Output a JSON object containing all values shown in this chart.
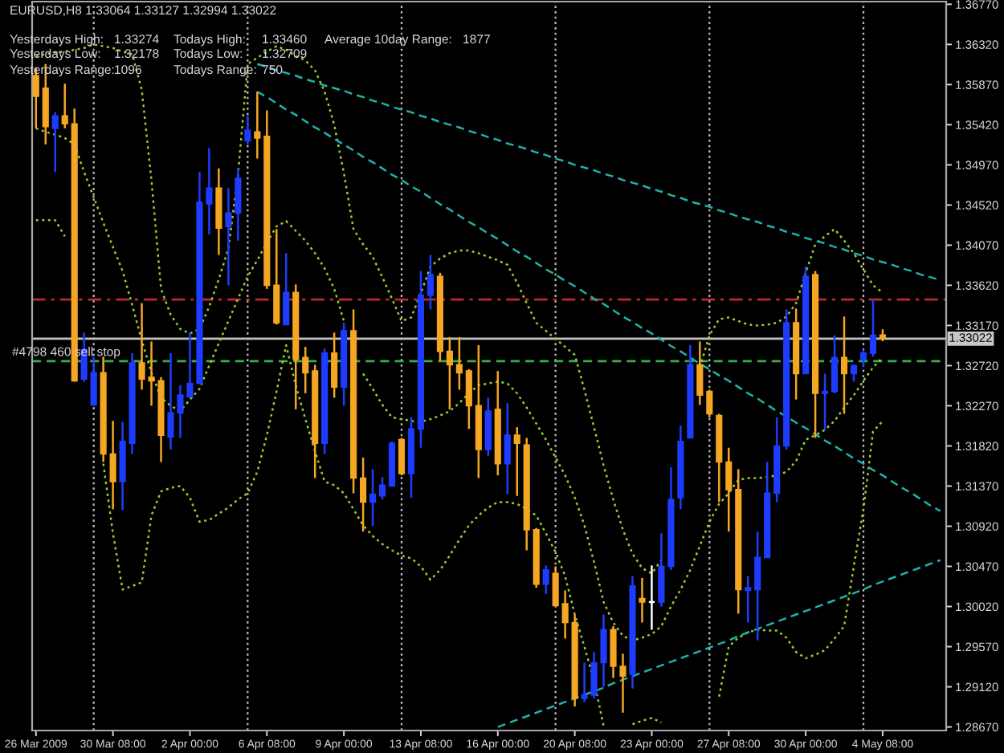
{
  "chart_data": {
    "type": "candlestick",
    "title": "EURUSD,H8 1.33064 1.33127 1.32994 1.33022",
    "annotations": [
      "Yesterdays High:",
      "1.33274",
      "Todays High:",
      "1.33460",
      "Average 10day Range:",
      "1877",
      "Yesterdays Low:",
      "1.32178",
      "Todays Low:",
      "1.32709",
      "Yesterdays Range:",
      "1096",
      "Todays Range:",
      "750"
    ],
    "categories": [
      "26 Mar 2009",
      null,
      null,
      null,
      null,
      null,
      null,
      null,
      "30 Mar 08:00",
      null,
      null,
      null,
      null,
      null,
      null,
      null,
      "2 Apr 00:00",
      null,
      null,
      null,
      null,
      null,
      null,
      null,
      "6 Apr 08:00",
      null,
      null,
      null,
      null,
      null,
      null,
      null,
      "9 Apr 00:00",
      null,
      null,
      null,
      null,
      null,
      null,
      null,
      "13 Apr 08:00",
      null,
      null,
      null,
      null,
      null,
      null,
      null,
      "16 Apr 00:00",
      null,
      null,
      null,
      null,
      null,
      null,
      null,
      "20 Apr 08:00",
      null,
      null,
      null,
      null,
      null,
      null,
      null,
      "23 Apr 00:00",
      null,
      null,
      null,
      null,
      null,
      null,
      null,
      "27 Apr 08:00",
      null,
      null,
      null,
      null,
      null,
      null,
      null,
      "30 Apr 00:00",
      null,
      null,
      null,
      null,
      null,
      null,
      null,
      "4 May 08:00",
      null,
      null,
      null,
      null,
      null,
      null
    ],
    "ohlc": [
      [
        1.3597,
        1.3606,
        1.3538,
        1.3574
      ],
      [
        1.3583,
        1.361,
        1.352,
        1.354
      ],
      [
        1.3538,
        1.3556,
        1.3489,
        1.3552
      ],
      [
        1.3552,
        1.3588,
        1.3538,
        1.3543
      ],
      [
        1.3543,
        1.356,
        1.3254,
        1.3255
      ],
      [
        1.3257,
        1.3309,
        1.3254,
        1.329
      ],
      [
        1.3228,
        1.3282,
        1.3227,
        1.3264
      ],
      [
        1.3264,
        1.3282,
        1.3164,
        1.3173
      ],
      [
        1.3173,
        1.321,
        1.3111,
        1.3142
      ],
      [
        1.3142,
        1.3209,
        1.311,
        1.3187
      ],
      [
        1.3185,
        1.3286,
        1.3173,
        1.3275
      ],
      [
        1.3275,
        1.3342,
        1.3245,
        1.3257
      ],
      [
        1.3259,
        1.3299,
        1.3227,
        1.3255
      ],
      [
        1.3255,
        1.3259,
        1.3164,
        1.3194
      ],
      [
        1.3192,
        1.3286,
        1.3178,
        1.3219
      ],
      [
        1.3219,
        1.325,
        1.3191,
        1.3239
      ],
      [
        1.3237,
        1.3309,
        1.3237,
        1.3252
      ],
      [
        1.3252,
        1.3489,
        1.3252,
        1.3455
      ],
      [
        1.3453,
        1.3516,
        1.3419,
        1.3471
      ],
      [
        1.3471,
        1.3493,
        1.3396,
        1.3426
      ],
      [
        1.3428,
        1.3471,
        1.3362,
        1.3443
      ],
      [
        1.3443,
        1.3493,
        1.3412,
        1.3482
      ],
      [
        1.3524,
        1.3552,
        1.352,
        1.3536
      ],
      [
        1.3534,
        1.3579,
        1.3504,
        1.3527
      ],
      [
        1.3529,
        1.3558,
        1.3358,
        1.3362
      ],
      [
        1.3362,
        1.3425,
        1.3318,
        1.332
      ],
      [
        1.3318,
        1.3398,
        1.3318,
        1.3354
      ],
      [
        1.3354,
        1.3363,
        1.3223,
        1.3279
      ],
      [
        1.3281,
        1.3293,
        1.3241,
        1.3264
      ],
      [
        1.3266,
        1.3273,
        1.3146,
        1.3185
      ],
      [
        1.3185,
        1.3291,
        1.3173,
        1.3286
      ],
      [
        1.3286,
        1.3309,
        1.3236,
        1.3248
      ],
      [
        1.3248,
        1.332,
        1.3227,
        1.3311
      ],
      [
        1.3311,
        1.3335,
        1.3129,
        1.3146
      ],
      [
        1.3146,
        1.3169,
        1.3086,
        1.3119
      ],
      [
        1.3119,
        1.3156,
        1.3092,
        1.3128
      ],
      [
        1.3126,
        1.3147,
        1.3122,
        1.3138
      ],
      [
        1.3137,
        1.3187,
        1.3137,
        1.3185
      ],
      [
        1.3189,
        1.3191,
        1.3149,
        1.3151
      ],
      [
        1.3151,
        1.3214,
        1.3124,
        1.3201
      ],
      [
        1.3201,
        1.3378,
        1.318,
        1.3351
      ],
      [
        1.3351,
        1.3396,
        1.3335,
        1.3374
      ],
      [
        1.3372,
        1.3376,
        1.3277,
        1.3288
      ],
      [
        1.3288,
        1.3304,
        1.3223,
        1.3273
      ],
      [
        1.3273,
        1.3304,
        1.3245,
        1.3264
      ],
      [
        1.3266,
        1.3268,
        1.3201,
        1.3227
      ],
      [
        1.3227,
        1.3295,
        1.3146,
        1.3178
      ],
      [
        1.3178,
        1.3236,
        1.3171,
        1.3221
      ],
      [
        1.3223,
        1.3266,
        1.3149,
        1.3162
      ],
      [
        1.3162,
        1.323,
        1.3128,
        1.3194
      ],
      [
        1.3194,
        1.3203,
        1.3126,
        1.3185
      ],
      [
        1.3183,
        1.3191,
        1.3065,
        1.3088
      ],
      [
        1.3088,
        1.309,
        1.3023,
        1.3027
      ],
      [
        1.3027,
        1.3048,
        1.3016,
        1.3043
      ],
      [
        1.3039,
        1.3047,
        1.3003,
        1.3003
      ],
      [
        1.3005,
        1.302,
        1.2966,
        1.2984
      ],
      [
        1.2984,
        1.2993,
        1.289,
        1.2899
      ],
      [
        1.2899,
        1.2939,
        1.2895,
        1.2903
      ],
      [
        1.2903,
        1.2951,
        1.2899,
        1.2939
      ],
      [
        1.2939,
        1.2993,
        1.2912,
        1.2976
      ],
      [
        1.2976,
        1.298,
        1.2922,
        1.2935
      ],
      [
        1.2935,
        1.2949,
        1.2883,
        1.2924
      ],
      [
        1.2926,
        1.3036,
        1.291,
        1.3025
      ],
      [
        1.3011,
        1.3034,
        1.2984,
        1.3007
      ],
      [
        1.3007,
        1.3048,
        1.2976,
        1.3007
      ],
      [
        1.3007,
        1.3084,
        1.3002,
        1.3047
      ],
      [
        1.3047,
        1.3158,
        1.3043,
        1.3122
      ],
      [
        1.3124,
        1.3205,
        1.3111,
        1.3187
      ],
      [
        1.3191,
        1.3295,
        1.3191,
        1.3273
      ],
      [
        1.3273,
        1.3299,
        1.3228,
        1.3239
      ],
      [
        1.3243,
        1.3245,
        1.3214,
        1.3218
      ],
      [
        1.3216,
        1.3218,
        1.3119,
        1.3164
      ],
      [
        1.3164,
        1.318,
        1.3086,
        1.3133
      ],
      [
        1.3133,
        1.3156,
        1.2994,
        1.3021
      ],
      [
        1.302,
        1.3036,
        1.2984,
        1.3023
      ],
      [
        1.3021,
        1.3086,
        1.2964,
        1.3057
      ],
      [
        1.3057,
        1.3164,
        1.3057,
        1.3129
      ],
      [
        1.3129,
        1.3214,
        1.3119,
        1.3182
      ],
      [
        1.3182,
        1.3335,
        1.3178,
        1.332
      ],
      [
        1.332,
        1.3336,
        1.3234,
        1.3263
      ],
      [
        1.3263,
        1.3383,
        1.3263,
        1.3372
      ],
      [
        1.3374,
        1.3378,
        1.3191,
        1.3241
      ],
      [
        1.3241,
        1.3263,
        1.32,
        1.3243
      ],
      [
        1.3243,
        1.3306,
        1.3241,
        1.3281
      ],
      [
        1.3281,
        1.3327,
        1.3218,
        1.3263
      ],
      [
        1.3263,
        1.3273,
        1.3254,
        1.3272
      ],
      [
        1.3279,
        1.329,
        1.3271,
        1.3286
      ],
      [
        1.3286,
        1.3346,
        1.3282,
        1.3306
      ],
      [
        1.33064,
        1.33127,
        1.32994,
        1.33022
      ],
      null,
      null,
      null,
      null,
      null,
      null
    ],
    "colors": [
      "#f5a623",
      "#f5a623",
      "#1e3cff",
      "#f5a623",
      "#f5a623",
      "#1e3cff",
      "#1e3cff",
      "#f5a623",
      "#f5a623",
      "#1e3cff",
      "#1e3cff",
      "#f5a623",
      "#f5a623",
      "#f5a623",
      "#1e3cff",
      "#1e3cff",
      "#1e3cff",
      "#1e3cff",
      "#1e3cff",
      "#f5a623",
      "#1e3cff",
      "#1e3cff",
      "#1e3cff",
      "#f5a623",
      "#f5a623",
      "#f5a623",
      "#1e3cff",
      "#f5a623",
      "#f5a623",
      "#f5a623",
      "#1e3cff",
      "#f5a623",
      "#1e3cff",
      "#f5a623",
      "#f5a623",
      "#1e3cff",
      "#1e3cff",
      "#1e3cff",
      "#f5a623",
      "#1e3cff",
      "#1e3cff",
      "#1e3cff",
      "#f5a623",
      "#f5a623",
      "#f5a623",
      "#f5a623",
      "#f5a623",
      "#1e3cff",
      "#f5a623",
      "#1e3cff",
      "#f5a623",
      "#f5a623",
      "#f5a623",
      "#1e3cff",
      "#f5a623",
      "#f5a623",
      "#f5a623",
      "#1e3cff",
      "#1e3cff",
      "#1e3cff",
      "#f5a623",
      "#f5a623",
      "#1e3cff",
      "#f5a623",
      "#ffffff",
      "#1e3cff",
      "#1e3cff",
      "#1e3cff",
      "#1e3cff",
      "#f5a623",
      "#f5a623",
      "#f5a623",
      "#f5a623",
      "#f5a623",
      "#1e3cff",
      "#1e3cff",
      "#1e3cff",
      "#1e3cff",
      "#1e3cff",
      "#f5a623",
      "#1e3cff",
      "#f5a623",
      "#1e3cff",
      "#1e3cff",
      "#f5a623",
      "#1e3cff",
      "#1e3cff",
      "#1e3cff",
      "#f5a623",
      null,
      null,
      null,
      null,
      null,
      null
    ],
    "series": [
      {
        "type": "line",
        "color": "#9acd32",
        "line_style": "dotted",
        "values": [
          1.3619,
          1.3621,
          1.3623,
          1.3624,
          1.3626,
          1.3628,
          1.3632,
          1.363,
          1.3628,
          1.3624,
          1.3621,
          1.3581,
          1.348,
          1.3358,
          1.3329,
          1.3313,
          1.3308,
          1.3313,
          1.3338,
          1.3369,
          1.3403,
          1.3486,
          1.361,
          1.3617,
          1.3624,
          1.363,
          1.3626,
          1.3619,
          1.3614,
          1.3603,
          1.3579,
          1.3542,
          1.3488,
          1.3425,
          1.3408,
          1.3394,
          1.3371,
          1.3347,
          1.3322,
          1.3326,
          1.3353,
          1.3383,
          1.3392,
          1.3398,
          1.3401,
          1.3401,
          1.3398,
          1.3394,
          1.339,
          1.3385,
          1.3365,
          1.3342,
          1.332,
          1.3311,
          1.3302,
          1.3293,
          1.3284,
          1.3245,
          1.3203,
          1.316,
          1.3122,
          1.3088,
          1.3061,
          1.3045,
          1.3039,
          1.3054,
          null,
          null,
          null,
          1.327,
          1.3306,
          1.3324,
          1.3326,
          1.3322,
          1.3318,
          1.3317,
          1.3318,
          1.332,
          1.3327,
          1.3342,
          1.3376,
          1.3408,
          1.3417,
          1.3425,
          1.3412,
          1.3398,
          1.338,
          1.3362,
          1.3354,
          null,
          null,
          null,
          null,
          null,
          null
        ]
      },
      {
        "type": "line",
        "color": "#9acd32",
        "line_style": "dotted",
        "values": [
          1.3538,
          1.3534,
          1.3531,
          1.3527,
          1.352,
          1.3489,
          1.3461,
          1.3432,
          1.3405,
          1.3378,
          1.334,
          1.33,
          1.3264,
          1.3236,
          1.3227,
          1.3221,
          1.3234,
          1.3246,
          1.3272,
          1.3297,
          1.3322,
          1.3347,
          1.3372,
          1.339,
          1.341,
          1.3428,
          1.3434,
          1.3423,
          1.3412,
          1.3398,
          1.3381,
          1.3358,
          1.3322,
          null,
          1.3263,
          1.3246,
          1.3228,
          1.3214,
          1.3212,
          1.321,
          1.3209,
          1.3212,
          1.3216,
          1.3221,
          1.323,
          1.3241,
          1.325,
          1.3252,
          1.3254,
          1.3252,
          1.3241,
          1.3225,
          1.3207,
          1.3189,
          1.3169,
          1.3149,
          1.3124,
          1.3093,
          1.3052,
          1.3007,
          1.2984,
          1.2969,
          1.2964,
          1.2967,
          1.2971,
          1.298,
          1.3002,
          1.3021,
          1.3043,
          1.307,
          1.3097,
          1.3117,
          1.3129,
          1.3144,
          1.3146,
          1.3146,
          1.3147,
          1.3149,
          1.3153,
          1.3165,
          1.3189,
          1.3194,
          1.32,
          1.321,
          1.3225,
          1.3239,
          1.3255,
          1.327,
          1.3281,
          null,
          null,
          null,
          null,
          null,
          null
        ]
      },
      {
        "type": "line",
        "color": "#9acd32",
        "line_style": "dotted",
        "values": [
          1.3435,
          1.3435,
          1.3435,
          1.3417,
          null,
          null,
          null,
          1.3162,
          1.3084,
          1.3021,
          1.3025,
          1.3029,
          1.3104,
          1.3131,
          1.3135,
          1.3137,
          1.3124,
          1.3097,
          1.3099,
          1.3106,
          1.3113,
          1.3122,
          1.3129,
          1.3153,
          1.3194,
          1.3243,
          1.3295,
          1.325,
          1.3212,
          1.3176,
          1.3142,
          1.3138,
          1.3129,
          1.3111,
          1.3093,
          1.3081,
          1.3072,
          1.3065,
          1.3059,
          1.3056,
          1.3047,
          1.3032,
          1.3043,
          1.3059,
          1.3077,
          1.3093,
          1.3104,
          1.3113,
          1.3119,
          1.3119,
          1.3117,
          1.3111,
          1.3104,
          1.3084,
          1.3063,
          1.3036,
          1.2993,
          1.2957,
          1.2919,
          1.2868,
          null,
          null,
          1.287,
          1.2874,
          1.2877,
          1.2872,
          null,
          null,
          null,
          null,
          null,
          1.2901,
          1.2957,
          1.2967,
          1.2973,
          1.2976,
          1.2975,
          1.2975,
          1.2967,
          1.2951,
          1.2944,
          1.2948,
          1.2953,
          1.2966,
          1.298,
          1.3047,
          1.3111,
          1.3198,
          1.321,
          null,
          null,
          null,
          null,
          null,
          null
        ]
      },
      {
        "type": "line",
        "color": "#20b2aa",
        "line_style": "dashed",
        "values": [
          null,
          null,
          null,
          null,
          null,
          null,
          null,
          null,
          null,
          null,
          null,
          null,
          null,
          null,
          null,
          null,
          null,
          null,
          null,
          null,
          null,
          null,
          null,
          1.361,
          1.3607,
          1.3603,
          1.36,
          1.3597,
          1.3593,
          1.359,
          1.3586,
          1.3583,
          1.358,
          1.3576,
          1.3573,
          1.3569,
          1.3566,
          1.3562,
          1.3559,
          1.3556,
          1.3552,
          1.3549,
          1.3545,
          1.3542,
          1.3539,
          1.3535,
          1.3532,
          1.3528,
          1.3525,
          1.3521,
          1.3518,
          1.3515,
          1.3511,
          1.3508,
          1.3504,
          1.3501,
          1.3497,
          1.3494,
          1.3491,
          1.3487,
          1.3484,
          1.348,
          1.3477,
          1.3474,
          1.347,
          1.3467,
          1.3463,
          1.346,
          1.3456,
          1.3453,
          1.345,
          1.3446,
          1.3443,
          1.3439,
          1.3436,
          1.3433,
          1.3429,
          1.3426,
          1.3422,
          1.3419,
          1.3415,
          1.3412,
          1.3409,
          1.3405,
          1.3402,
          1.3398,
          1.3395,
          1.3391,
          1.3388,
          1.3385,
          1.3381,
          1.3378,
          1.3374,
          1.3371,
          1.3368
        ]
      },
      {
        "type": "line",
        "color": "#20b2aa",
        "line_style": "dashed",
        "values": [
          null,
          null,
          null,
          null,
          null,
          null,
          null,
          null,
          null,
          null,
          null,
          null,
          null,
          null,
          null,
          null,
          null,
          null,
          null,
          null,
          null,
          null,
          null,
          1.3579,
          1.3573,
          1.3566,
          1.3559,
          1.3553,
          1.3546,
          1.3539,
          1.3533,
          1.3526,
          1.352,
          1.3513,
          1.3506,
          1.35,
          1.3493,
          1.3486,
          1.348,
          1.3473,
          1.3467,
          1.346,
          1.3453,
          1.3447,
          1.344,
          1.3433,
          1.3427,
          1.342,
          1.3414,
          1.3407,
          1.34,
          1.3394,
          1.3387,
          1.338,
          1.3374,
          1.3367,
          1.3361,
          1.3354,
          1.3347,
          1.3341,
          1.3334,
          1.3327,
          1.3321,
          1.3314,
          1.3308,
          1.3301,
          1.3294,
          1.3288,
          1.3281,
          1.3274,
          1.3268,
          1.3261,
          1.3255,
          1.3248,
          1.3241,
          1.3235,
          1.3228,
          1.3221,
          1.3215,
          1.3208,
          1.3202,
          1.3195,
          1.3188,
          1.3182,
          1.3175,
          1.3168,
          1.3162,
          1.3155,
          1.3149,
          1.3142,
          1.3135,
          1.3129,
          1.3122,
          1.3115,
          1.3109
        ]
      },
      {
        "type": "line",
        "color": "#20b2aa",
        "line_style": "dashed",
        "values": [
          null,
          null,
          null,
          null,
          null,
          null,
          null,
          null,
          null,
          null,
          null,
          null,
          null,
          null,
          null,
          null,
          null,
          null,
          null,
          null,
          null,
          null,
          null,
          null,
          null,
          null,
          null,
          null,
          null,
          null,
          null,
          null,
          null,
          null,
          null,
          null,
          null,
          null,
          null,
          null,
          null,
          null,
          null,
          null,
          null,
          null,
          null,
          null,
          1.2867,
          1.2871,
          1.2875,
          1.2879,
          1.2883,
          1.2887,
          1.2891,
          1.2895,
          1.2899,
          1.2903,
          1.2907,
          1.2911,
          1.2916,
          1.292,
          1.2924,
          1.2928,
          1.2932,
          1.2936,
          1.294,
          1.2944,
          1.2948,
          1.2952,
          1.2956,
          1.296,
          1.2964,
          1.2969,
          1.2973,
          1.2977,
          1.2981,
          1.2985,
          1.2989,
          1.2993,
          1.2997,
          1.3001,
          1.3005,
          1.3009,
          1.3013,
          1.3017,
          1.3021,
          1.3026,
          1.303,
          1.3034,
          1.3038,
          1.3042,
          1.3046,
          1.305,
          1.3054
        ]
      }
    ],
    "ref_lines": [
      {
        "axis": "y",
        "value": 1.3346,
        "color": "#c0282d",
        "line_style": "dashdot"
      },
      {
        "axis": "y",
        "value": 1.33022,
        "color": "#c0c0c0",
        "line_style": "solid",
        "label": "1.33022"
      },
      {
        "axis": "y",
        "value": 1.3277,
        "color": "#3cb043",
        "line_style": "dashed",
        "label": "#4798 460 sell stop"
      }
    ],
    "grid": "x",
    "ylim": [
      1.2863,
      1.368
    ],
    "yticks": [
      {
        "value": 1.2867,
        "label": "1.28670"
      },
      {
        "value": 1.2912,
        "label": "1.29120"
      },
      {
        "value": 1.2957,
        "label": "1.29570"
      },
      {
        "value": 1.3002,
        "label": "1.30020"
      },
      {
        "value": 1.3047,
        "label": "1.30470"
      },
      {
        "value": 1.3092,
        "label": "1.30920"
      },
      {
        "value": 1.3137,
        "label": "1.31370"
      },
      {
        "value": 1.3182,
        "label": "1.31820"
      },
      {
        "value": 1.3227,
        "label": "1.32270"
      },
      {
        "value": 1.3272,
        "label": "1.32720"
      },
      {
        "value": 1.3317,
        "label": "1.33170"
      },
      {
        "value": 1.3362,
        "label": "1.33620"
      },
      {
        "value": 1.3407,
        "label": "1.34070"
      },
      {
        "value": 1.3452,
        "label": "1.34520"
      },
      {
        "value": 1.3497,
        "label": "1.34970"
      },
      {
        "value": 1.3542,
        "label": "1.35420"
      },
      {
        "value": 1.3587,
        "label": "1.35870"
      },
      {
        "value": 1.3632,
        "label": "1.36320"
      },
      {
        "value": 1.3677,
        "label": "1.36770"
      }
    ]
  }
}
